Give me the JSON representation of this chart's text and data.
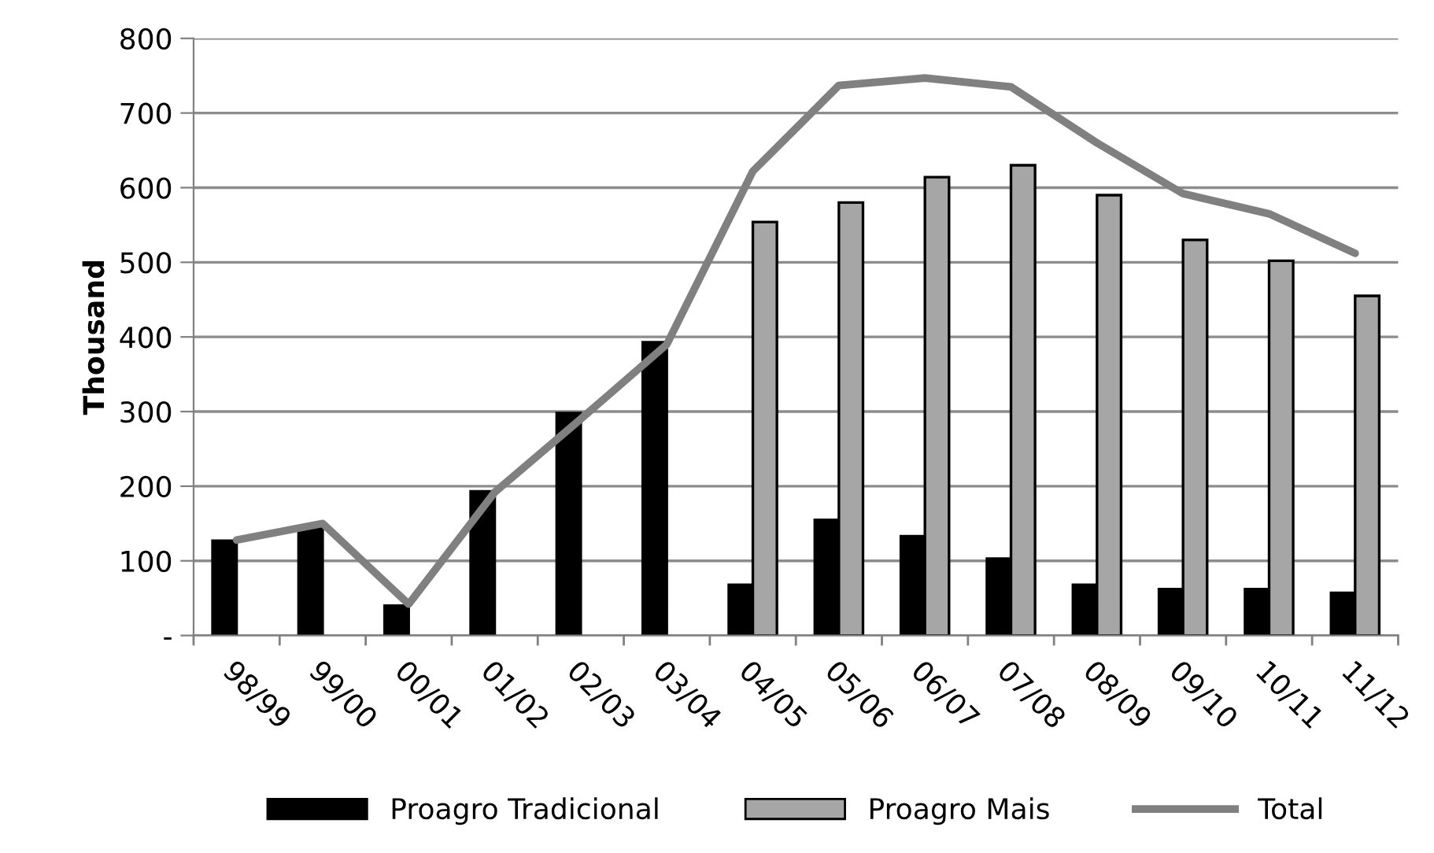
{
  "chart_data": {
    "type": "bar",
    "ylabel": "Thousand",
    "categories": [
      "98/99",
      "99/00",
      "00/01",
      "01/02",
      "02/03",
      "03/04",
      "04/05",
      "05/06",
      "06/07",
      "07/08",
      "08/09",
      "09/10",
      "10/11",
      "11/12"
    ],
    "series": [
      {
        "name": "Proagro Tradicional",
        "color": "#000000",
        "values": [
          127,
          145,
          40,
          193,
          298,
          393,
          68,
          155,
          133,
          103,
          68,
          62,
          62,
          57
        ]
      },
      {
        "name": "Proagro Mais",
        "color": "#a6a6a6",
        "values": [
          null,
          null,
          null,
          null,
          null,
          null,
          554,
          580,
          614,
          630,
          590,
          530,
          502,
          455
        ]
      },
      {
        "name": "Total",
        "type": "line",
        "color": "#808080",
        "values": [
          128,
          150,
          42,
          192,
          290,
          390,
          622,
          737,
          747,
          735,
          660,
          592,
          565,
          512
        ]
      }
    ],
    "ylim": [
      0,
      800
    ],
    "yticks": [
      {
        "value": 0,
        "label": "-"
      },
      100,
      200,
      300,
      400,
      500,
      600,
      700,
      800
    ],
    "grid": "y",
    "legend": "bottom",
    "marker": "none",
    "line_style": "solid"
  }
}
